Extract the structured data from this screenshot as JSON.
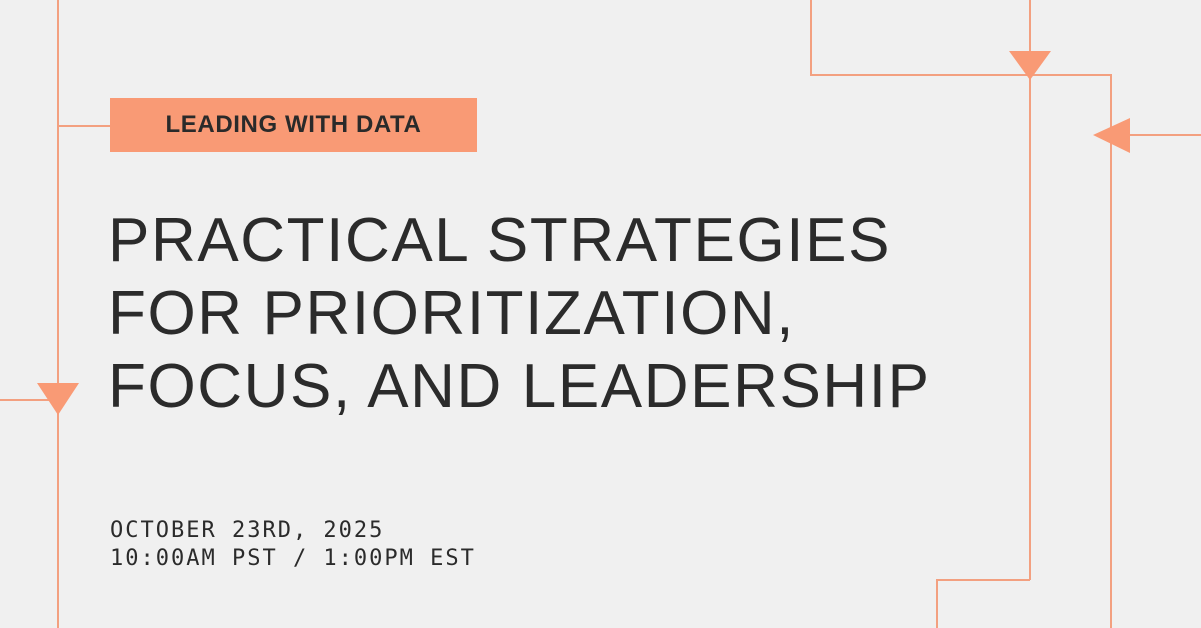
{
  "badge": {
    "label": "LEADING WITH DATA"
  },
  "title": {
    "lines": [
      "PRACTICAL STRATEGIES",
      "FOR PRIORITIZATION,",
      "FOCUS, AND LEADERSHIP"
    ]
  },
  "event": {
    "date": "OCTOBER 23RD, 2025",
    "time": "10:00AM PST / 1:00PM EST"
  },
  "colors": {
    "accent": "#f99a75",
    "line": "#f3a080",
    "background": "#f0f0f0",
    "text": "#2b2b2b"
  }
}
